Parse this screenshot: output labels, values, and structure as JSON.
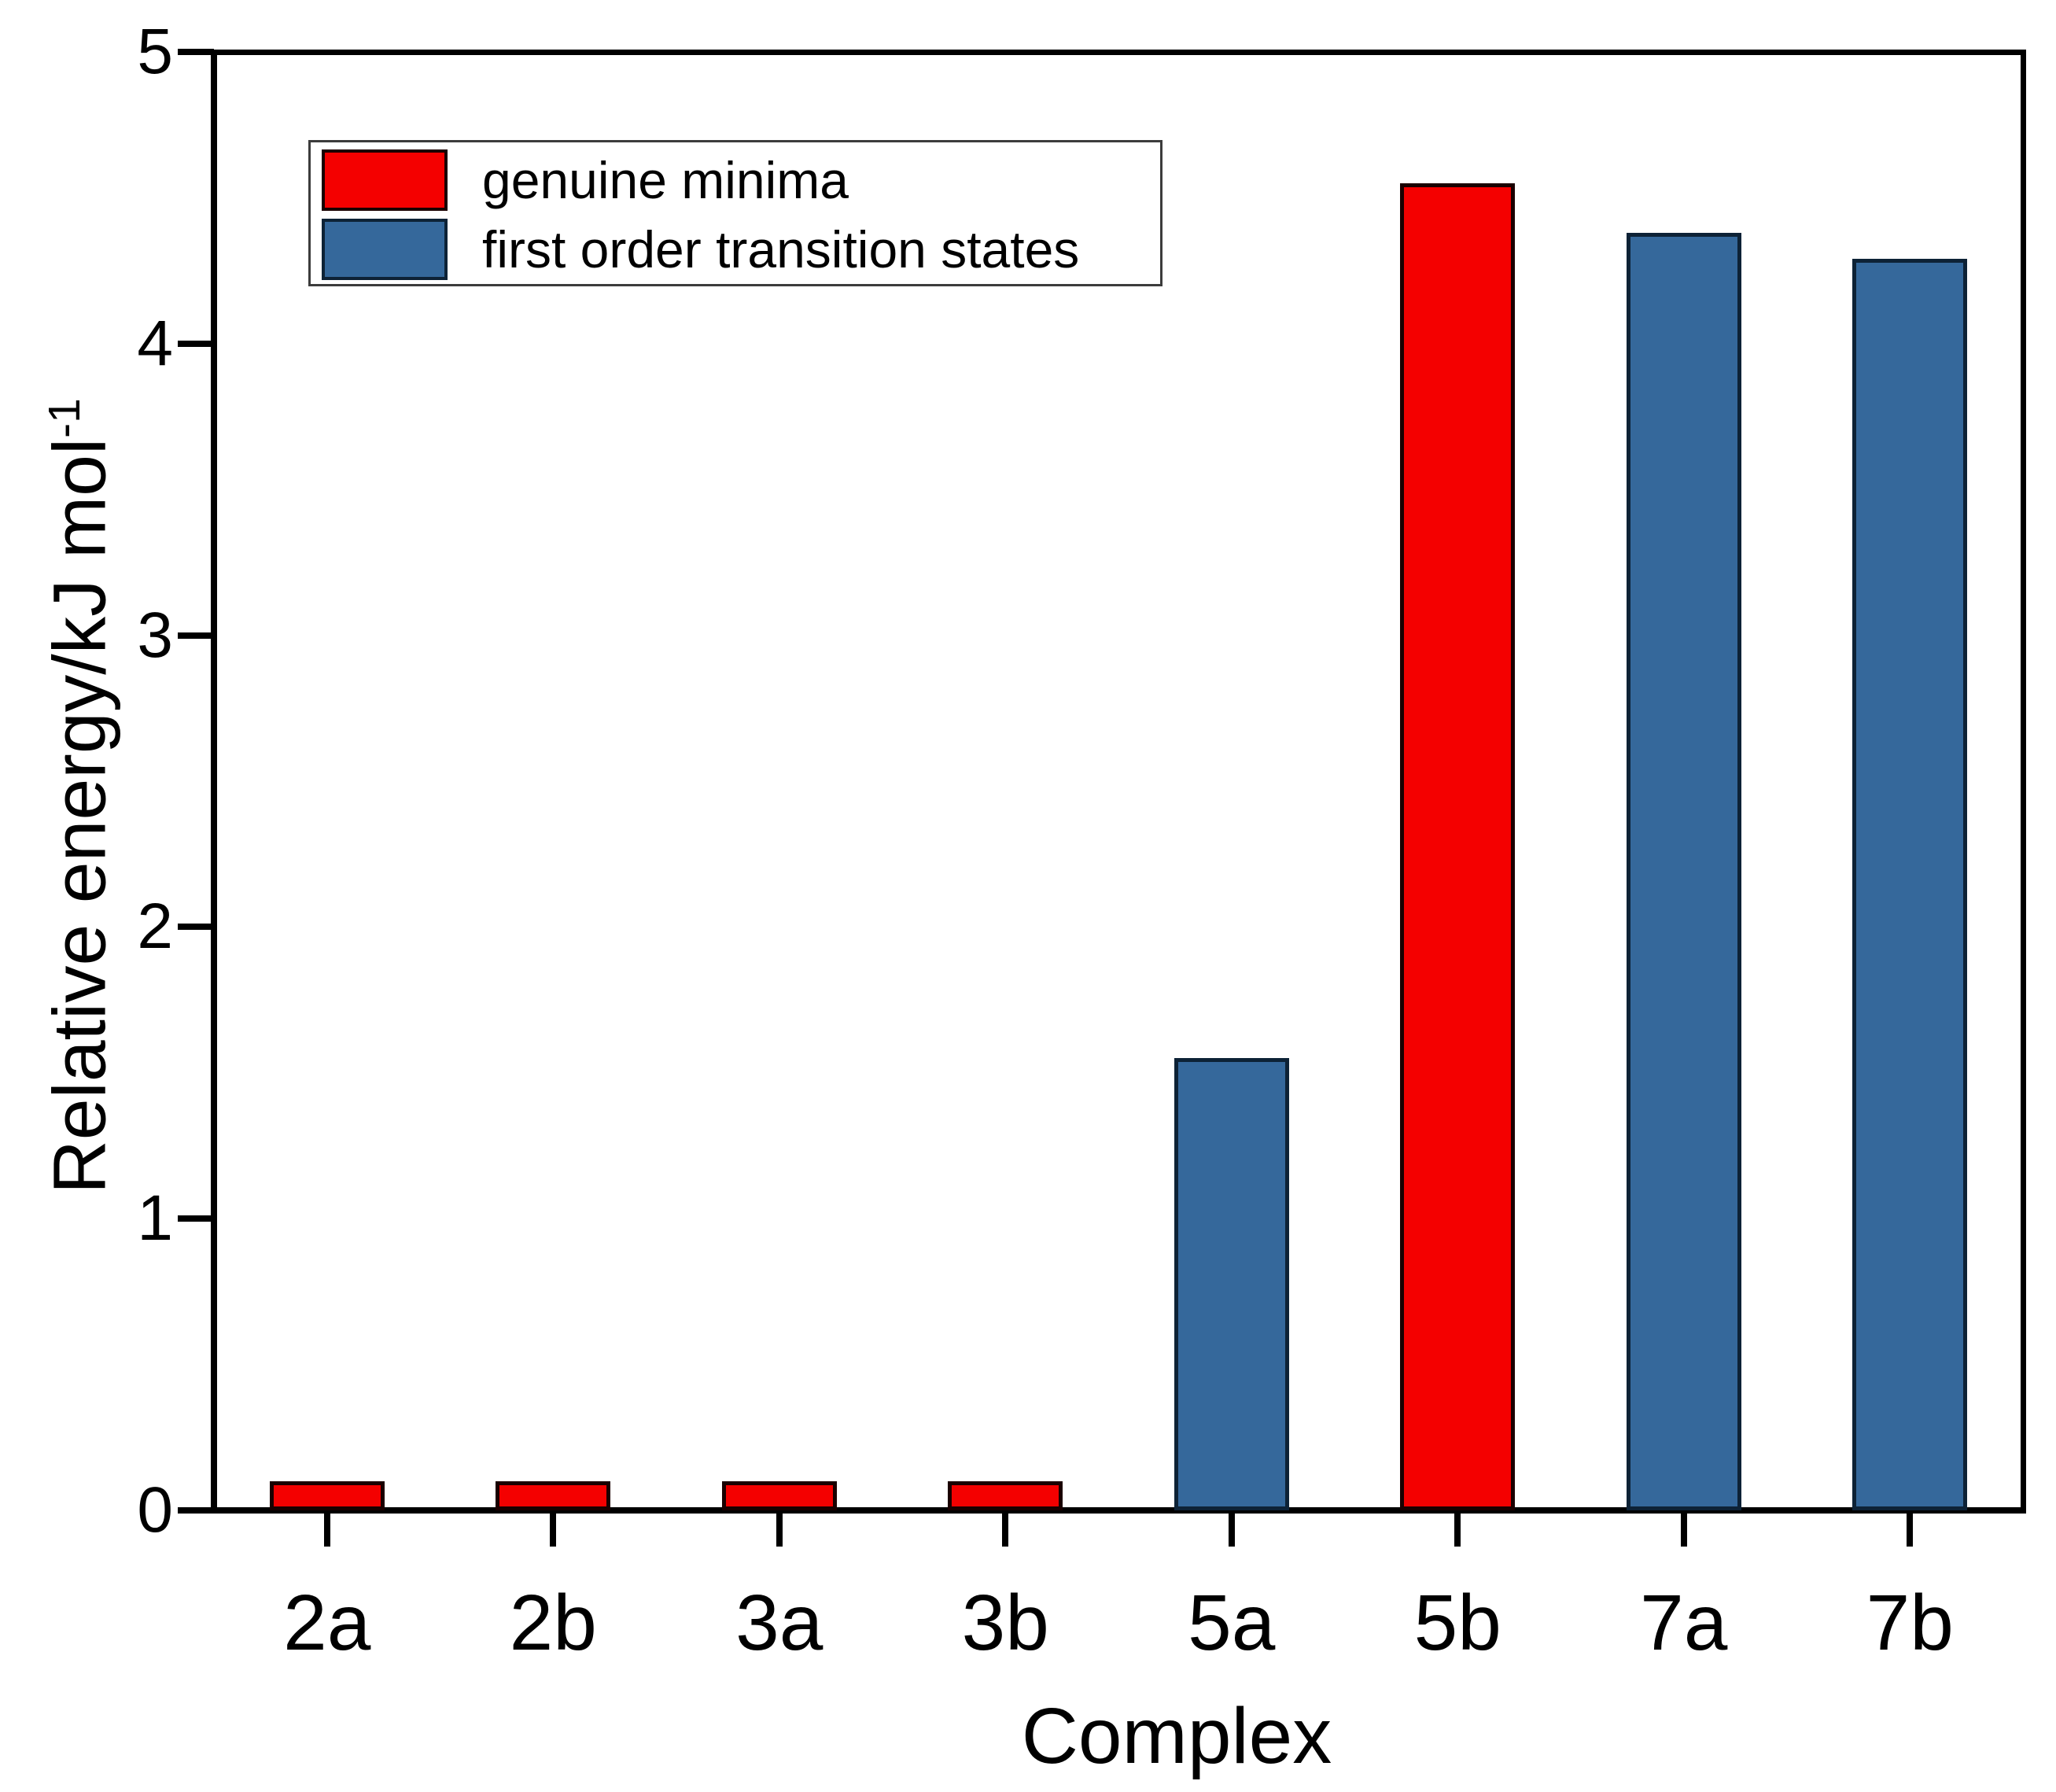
{
  "chart_data": {
    "type": "bar",
    "title": "",
    "xlabel": "Complex",
    "ylabel": "Relative energy/kJ mol⁻¹",
    "ylabel_main": "Relative energy/kJ mol",
    "ylabel_sup": "-1",
    "categories": [
      "2a",
      "2b",
      "3a",
      "3b",
      "5a",
      "5b",
      "7a",
      "7b"
    ],
    "values": [
      0.1,
      0.1,
      0.1,
      0.1,
      1.55,
      4.55,
      4.38,
      4.29
    ],
    "bar_types": [
      "minimum",
      "minimum",
      "minimum",
      "minimum",
      "transition",
      "minimum",
      "transition",
      "transition"
    ],
    "ylim": [
      0,
      5
    ],
    "yticks": [
      0,
      1,
      2,
      3,
      4,
      5
    ],
    "grid": false,
    "legend_position": "top-left",
    "legend": [
      {
        "label": "genuine minima",
        "color": "#f40000",
        "border": "#1a0000"
      },
      {
        "label": "first order transition states",
        "color": "#35689b",
        "border": "#0d2236"
      }
    ],
    "colors": {
      "minimum": "#f40000",
      "minimum_border": "#1a0000",
      "transition": "#35689b",
      "transition_border": "#0d2236",
      "axis": "#000000"
    }
  }
}
